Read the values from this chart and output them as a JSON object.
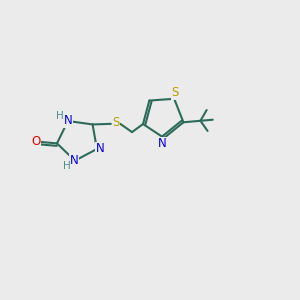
{
  "bg_color": "#ebebeb",
  "bond_color": "#2d6b5a",
  "atom_colors": {
    "N": "#0000e0",
    "O": "#ee0000",
    "S_linker": "#b8a000",
    "S_thiazole": "#b8a000",
    "H": "#4a9090"
  },
  "figsize": [
    3.0,
    3.0
  ],
  "dpi": 100
}
